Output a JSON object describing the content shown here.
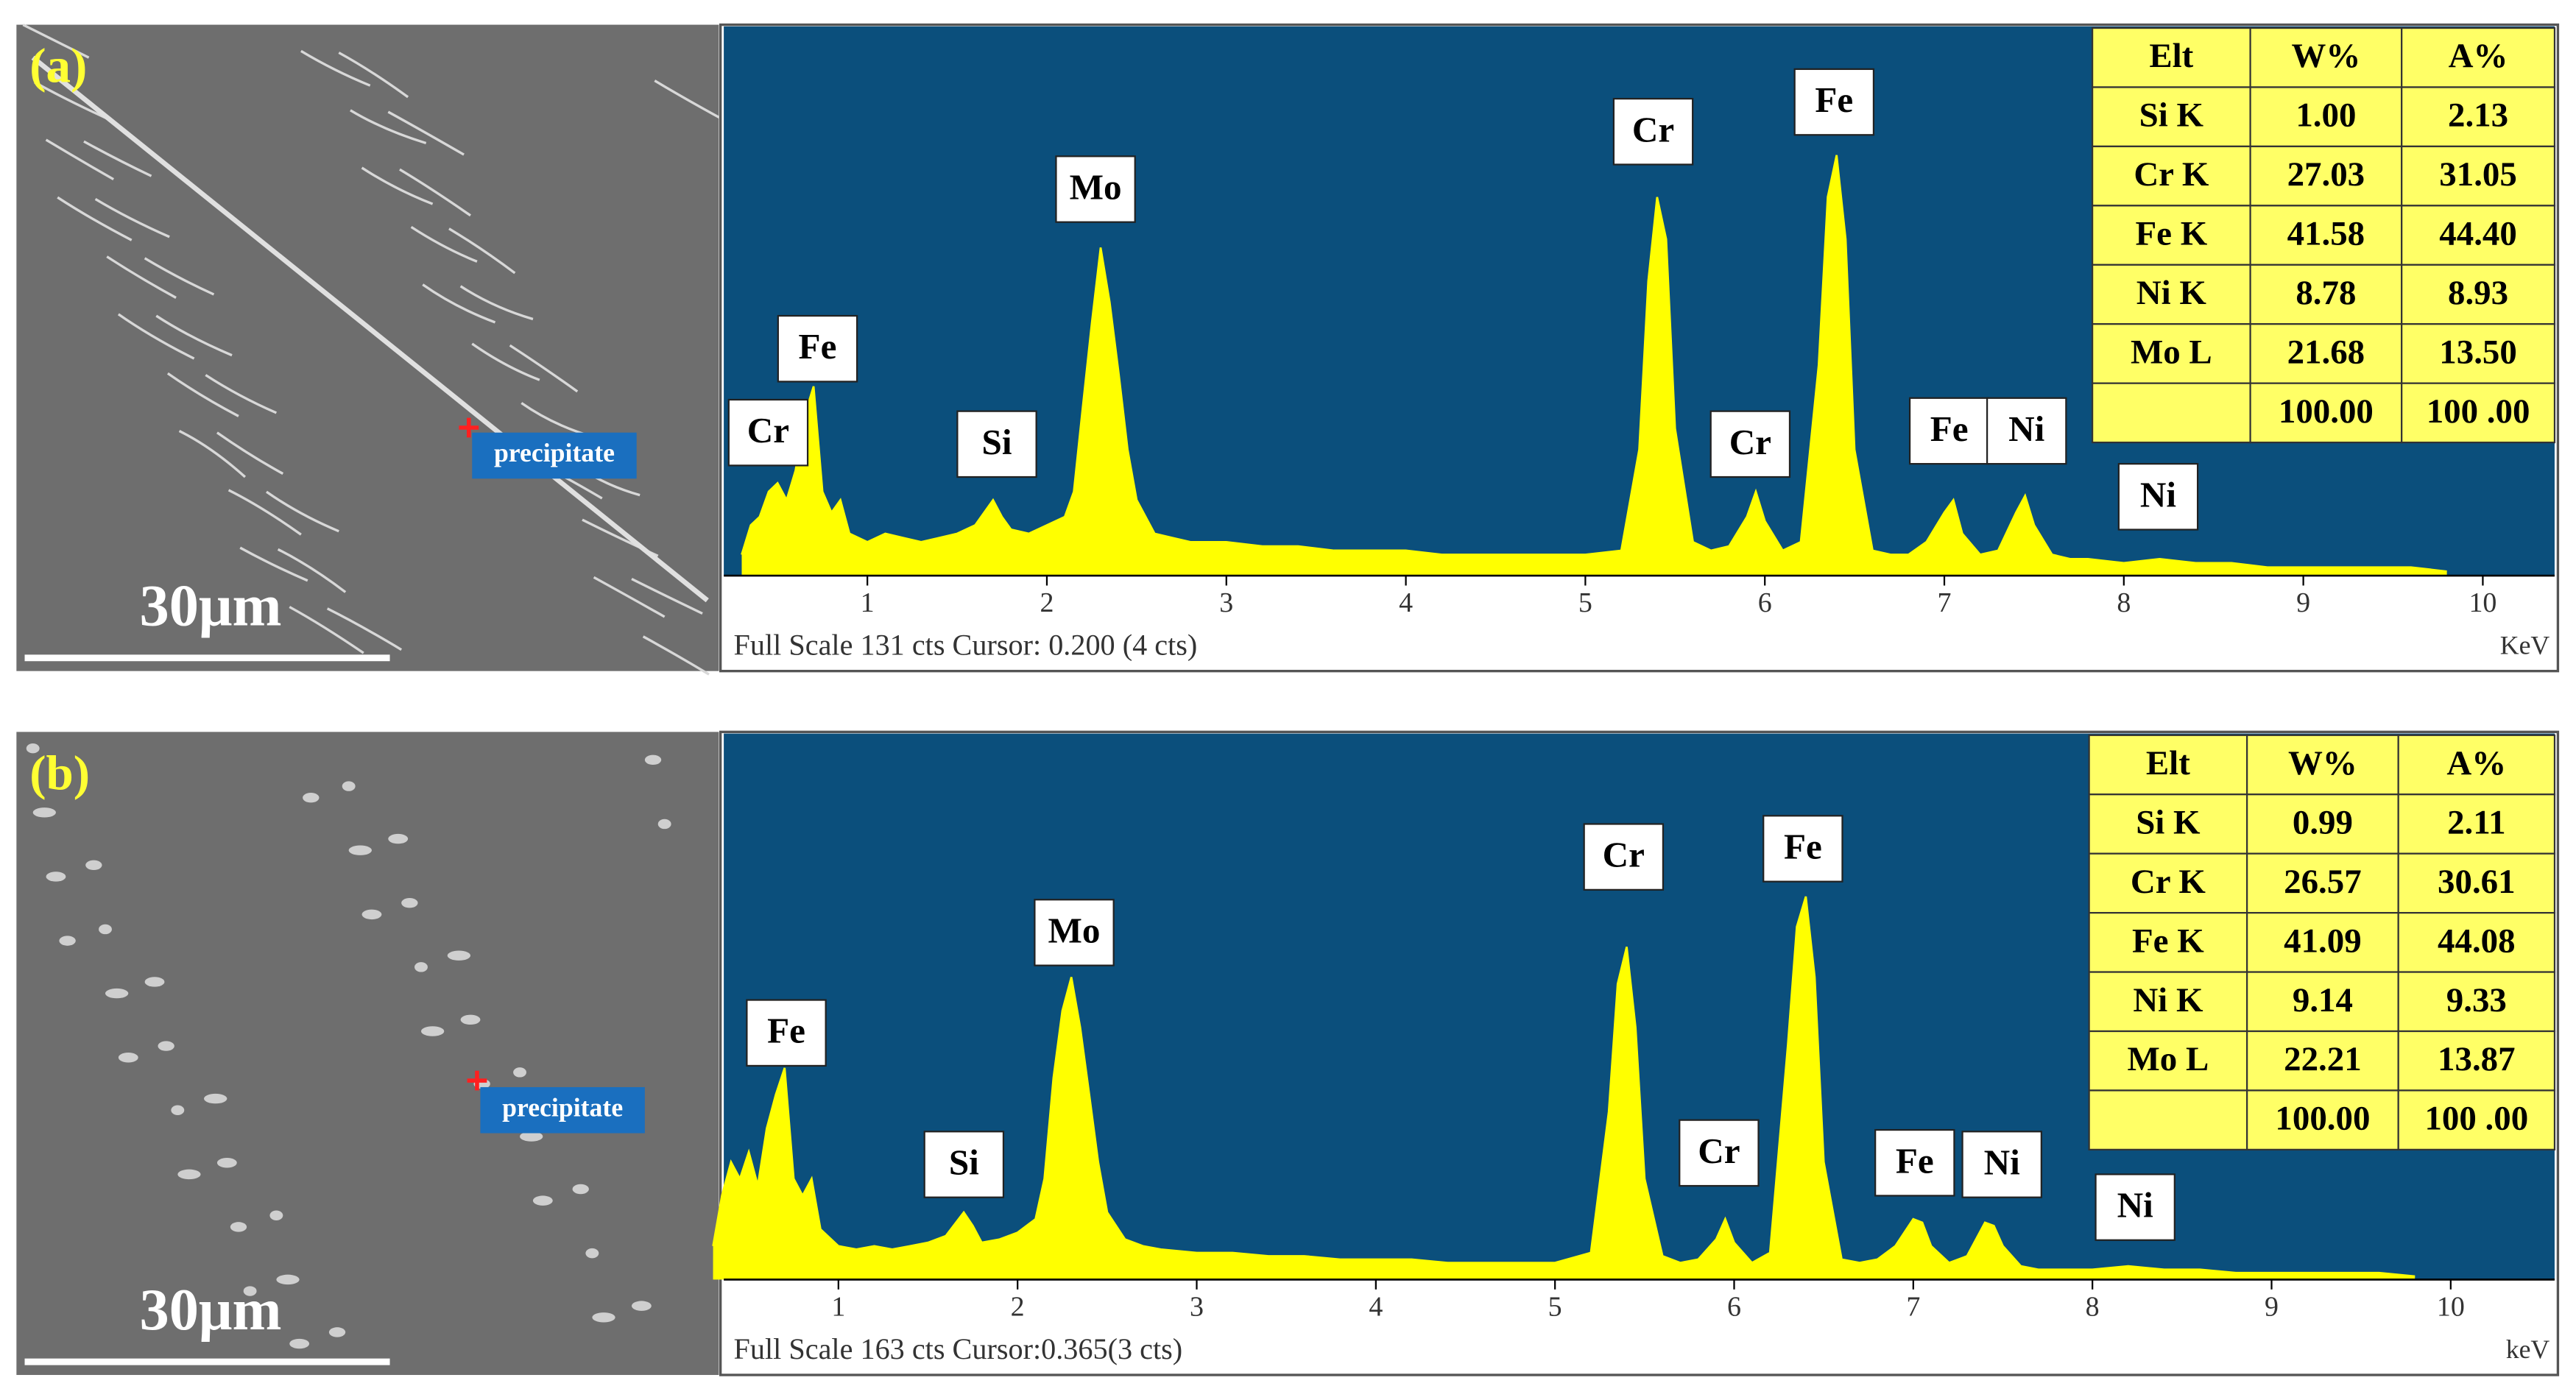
{
  "chart_data": [
    {
      "type": "line",
      "panel_label": "(a)",
      "scale_bar": "30μm",
      "image_annotation": "precipitate",
      "peak_labels": [
        "Cr",
        "Fe",
        "Si",
        "Mo",
        "Cr",
        "Fe",
        "Cr",
        "Fe",
        "Ni",
        "Ni"
      ],
      "x": [
        0.3,
        0.35,
        0.4,
        0.45,
        0.5,
        0.55,
        0.6,
        0.65,
        0.7,
        0.75,
        0.8,
        0.85,
        0.9,
        1.0,
        1.1,
        1.2,
        1.3,
        1.4,
        1.5,
        1.6,
        1.7,
        1.75,
        1.8,
        1.9,
        2.0,
        2.1,
        2.15,
        2.2,
        2.25,
        2.3,
        2.35,
        2.4,
        2.45,
        2.5,
        2.6,
        2.7,
        2.8,
        3.0,
        3.2,
        3.4,
        3.6,
        3.8,
        4.0,
        4.2,
        4.4,
        4.6,
        4.8,
        5.0,
        5.2,
        5.3,
        5.35,
        5.4,
        5.45,
        5.5,
        5.6,
        5.7,
        5.8,
        5.9,
        5.95,
        6.0,
        6.1,
        6.2,
        6.3,
        6.35,
        6.4,
        6.45,
        6.5,
        6.6,
        6.7,
        6.8,
        6.9,
        7.0,
        7.05,
        7.1,
        7.2,
        7.3,
        7.4,
        7.45,
        7.5,
        7.6,
        7.7,
        7.8,
        8.0,
        8.2,
        8.4,
        8.6,
        8.8,
        9.0,
        9.2,
        9.4,
        9.6,
        9.8
      ],
      "values": [
        5,
        12,
        14,
        20,
        22,
        18,
        25,
        38,
        45,
        20,
        15,
        18,
        10,
        8,
        10,
        9,
        8,
        9,
        10,
        12,
        18,
        14,
        11,
        10,
        12,
        14,
        20,
        40,
        60,
        78,
        65,
        48,
        30,
        18,
        10,
        9,
        8,
        8,
        7,
        7,
        6,
        6,
        6,
        5,
        5,
        5,
        5,
        5,
        6,
        30,
        70,
        90,
        80,
        35,
        8,
        6,
        7,
        14,
        20,
        13,
        6,
        8,
        50,
        90,
        100,
        80,
        30,
        6,
        5,
        5,
        8,
        15,
        18,
        10,
        5,
        6,
        15,
        19,
        12,
        5,
        4,
        4,
        3,
        4,
        3,
        3,
        2,
        2,
        2,
        2,
        2,
        1
      ],
      "color": "#ffff00",
      "xlim": [
        0.2,
        10.4
      ],
      "xticks": [
        1,
        2,
        3,
        4,
        5,
        6,
        7,
        8,
        9,
        10
      ],
      "ylim": [
        0,
        131
      ],
      "xlabel": "KeV",
      "footer": "Full Scale 131 cts Cursor: 0.200 (4 cts)",
      "table": {
        "header": [
          "Elt",
          "W%",
          "A%"
        ],
        "rows": [
          [
            "Si K",
            "1.00",
            "2.13"
          ],
          [
            "Cr K",
            "27.03",
            "31.05"
          ],
          [
            "Fe K",
            "41.58",
            "44.40"
          ],
          [
            "Ni K",
            "8.78",
            "8.93"
          ],
          [
            "Mo L",
            "21.68",
            "13.50"
          ]
        ],
        "totals": [
          "100.00",
          "100 .00"
        ]
      }
    },
    {
      "type": "line",
      "panel_label": "(b)",
      "scale_bar": "30μm",
      "image_annotation": "precipitate",
      "peak_labels": [
        "Fe",
        "Si",
        "Mo",
        "Cr",
        "Fe",
        "Cr",
        "Fe",
        "Ni",
        "Ni"
      ],
      "x": [
        0.3,
        0.35,
        0.4,
        0.45,
        0.5,
        0.55,
        0.6,
        0.65,
        0.7,
        0.75,
        0.8,
        0.85,
        0.9,
        1.0,
        1.1,
        1.2,
        1.3,
        1.4,
        1.5,
        1.6,
        1.7,
        1.75,
        1.8,
        1.9,
        2.0,
        2.1,
        2.15,
        2.2,
        2.25,
        2.3,
        2.35,
        2.4,
        2.45,
        2.5,
        2.6,
        2.7,
        2.8,
        3.0,
        3.2,
        3.4,
        3.6,
        3.8,
        4.0,
        4.2,
        4.4,
        4.6,
        4.8,
        5.0,
        5.2,
        5.3,
        5.35,
        5.4,
        5.45,
        5.5,
        5.6,
        5.7,
        5.8,
        5.9,
        5.95,
        6.0,
        6.1,
        6.2,
        6.3,
        6.35,
        6.4,
        6.45,
        6.5,
        6.6,
        6.7,
        6.8,
        6.9,
        7.0,
        7.05,
        7.1,
        7.2,
        7.3,
        7.4,
        7.45,
        7.5,
        7.6,
        7.7,
        7.8,
        8.0,
        8.2,
        8.4,
        8.6,
        8.8,
        9.0,
        9.2,
        9.4,
        9.6,
        9.8
      ],
      "values": [
        10,
        25,
        35,
        30,
        38,
        28,
        45,
        55,
        63,
        30,
        25,
        30,
        15,
        10,
        9,
        10,
        9,
        10,
        11,
        13,
        20,
        16,
        11,
        12,
        14,
        18,
        30,
        60,
        80,
        90,
        75,
        55,
        35,
        20,
        12,
        10,
        9,
        8,
        8,
        7,
        7,
        6,
        6,
        6,
        5,
        5,
        5,
        5,
        8,
        50,
        88,
        99,
        75,
        30,
        7,
        5,
        6,
        12,
        18,
        11,
        5,
        8,
        70,
        105,
        114,
        90,
        35,
        6,
        5,
        6,
        10,
        18,
        17,
        10,
        5,
        7,
        17,
        16,
        10,
        4,
        3,
        3,
        3,
        4,
        3,
        3,
        2,
        2,
        2,
        2,
        2,
        1
      ],
      "color": "#ffff00",
      "xlim": [
        0.36,
        10.58
      ],
      "xticks": [
        1,
        2,
        3,
        4,
        5,
        6,
        7,
        8,
        9,
        10
      ],
      "ylim": [
        0,
        163
      ],
      "xlabel": "keV",
      "footer": "Full Scale 163 cts Cursor:0.365(3 cts)",
      "table": {
        "header": [
          "Elt",
          "W%",
          "A%"
        ],
        "rows": [
          [
            "Si K",
            "0.99",
            "2.11"
          ],
          [
            "Cr K",
            "26.57",
            "30.61"
          ],
          [
            "Fe K",
            "41.09",
            "44.08"
          ],
          [
            "Ni K",
            "9.14",
            "9.33"
          ],
          [
            "Mo L",
            "22.21",
            "13.87"
          ]
        ],
        "totals": [
          "100.00",
          "100 .00"
        ]
      }
    }
  ]
}
